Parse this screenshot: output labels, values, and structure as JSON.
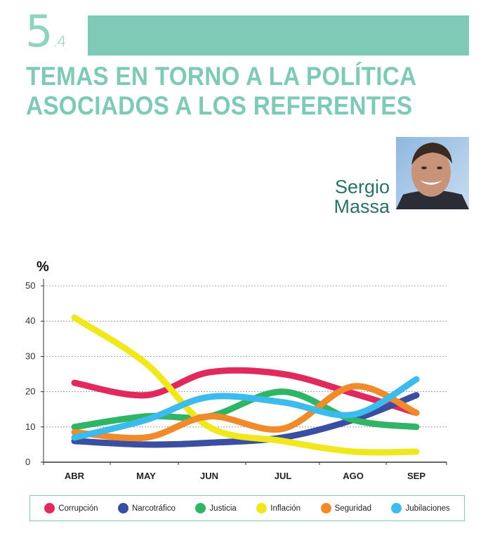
{
  "section": {
    "number": "5",
    "sub": ".4"
  },
  "title": {
    "line1": "TEMAS EN TORNO A LA POLÍTICA",
    "line2": "ASOCIADOS A LOS REFERENTES"
  },
  "person": {
    "first": "Sergio",
    "last": "Massa"
  },
  "colors": {
    "accent": "#7ecab6",
    "name": "#2a7268"
  },
  "chart_data": {
    "type": "line",
    "ylabel": "%",
    "xlabel": "",
    "ylim": [
      0,
      50
    ],
    "yticks": [
      "0",
      "10",
      "20",
      "30",
      "40",
      "50"
    ],
    "categories": [
      "ABR",
      "MAY",
      "JUN",
      "JUL",
      "AGO",
      "SEP"
    ],
    "series": [
      {
        "name": "Corrupción",
        "color": "#e02a5e",
        "values": [
          22.5,
          19,
          25.5,
          25,
          19.5,
          14
        ]
      },
      {
        "name": "Narcotráfico",
        "color": "#3a4ea2",
        "values": [
          6,
          5,
          5.5,
          7,
          12,
          19
        ]
      },
      {
        "name": "Justicia",
        "color": "#2fb563",
        "values": [
          10,
          13,
          13,
          20,
          12,
          10
        ]
      },
      {
        "name": "Inflación",
        "color": "#f0e81c",
        "values": [
          41,
          28,
          10,
          6,
          3,
          3
        ]
      },
      {
        "name": "Seguridad",
        "color": "#f08a2a",
        "values": [
          8.5,
          7,
          13,
          9.5,
          21.5,
          14
        ]
      },
      {
        "name": "Jubilaciones",
        "color": "#3cbcec",
        "values": [
          7,
          12,
          18.5,
          17,
          13.5,
          23.5
        ]
      }
    ]
  }
}
